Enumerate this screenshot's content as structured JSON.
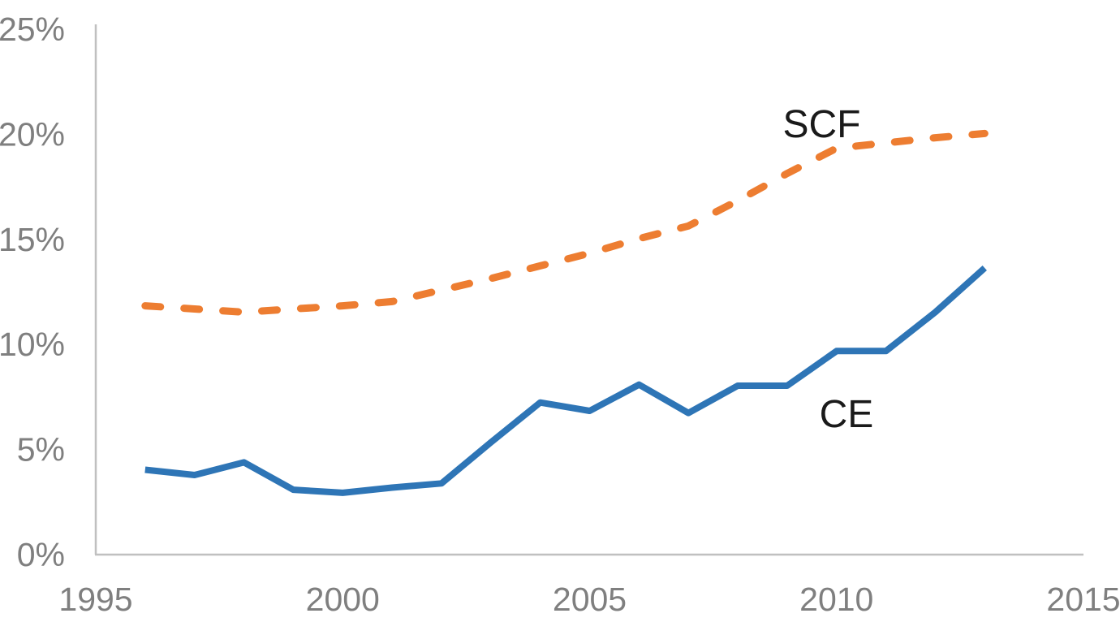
{
  "chart_data": {
    "type": "line",
    "title": "",
    "xlabel": "",
    "ylabel": "",
    "x_years": [
      1996,
      1997,
      1998,
      1999,
      2000,
      2001,
      2002,
      2003,
      2004,
      2005,
      2006,
      2007,
      2008,
      2009,
      2010,
      2011,
      2012,
      2013
    ],
    "series": [
      {
        "name": "CE",
        "color": "#2E75B6",
        "line_style": "solid",
        "values": [
          4.0,
          3.75,
          4.35,
          3.05,
          2.9,
          3.15,
          3.35,
          5.3,
          7.2,
          6.8,
          8.05,
          6.7,
          8.0,
          8.0,
          9.65,
          9.65,
          11.5,
          13.6
        ]
      },
      {
        "name": "SCF",
        "color": "#ED7D31",
        "line_style": "dashed",
        "values": [
          11.8,
          11.65,
          11.5,
          11.65,
          11.8,
          12.0,
          12.55,
          13.1,
          13.7,
          14.3,
          15.0,
          15.6,
          16.8,
          18.1,
          19.3,
          19.55,
          19.8,
          20.0
        ]
      }
    ],
    "x_ticks": [
      {
        "value": 1995,
        "label": "1995"
      },
      {
        "value": 2000,
        "label": "2000"
      },
      {
        "value": 2005,
        "label": "2005"
      },
      {
        "value": 2010,
        "label": "2010"
      },
      {
        "value": 2015,
        "label": "2015"
      }
    ],
    "y_ticks": [
      {
        "value": 0,
        "label": "0%"
      },
      {
        "value": 5,
        "label": "5%"
      },
      {
        "value": 10,
        "label": "10%"
      },
      {
        "value": 15,
        "label": "15%"
      },
      {
        "value": 20,
        "label": "20%"
      },
      {
        "value": 25,
        "label": "25%"
      }
    ],
    "xlim": [
      1995,
      2015
    ],
    "ylim": [
      0,
      25
    ],
    "grid": false,
    "legend_position": "inline-labels",
    "annotations": [
      {
        "text": "SCF",
        "year": 2009.7,
        "value": 20.4
      },
      {
        "text": "CE",
        "year": 2010.2,
        "value": 6.6
      }
    ],
    "colors": {
      "axis_line": "#C0C0C0",
      "tick_label": "#7F7F7F",
      "annotation_text": "#1A1A1A",
      "background": "#FFFFFF"
    }
  }
}
